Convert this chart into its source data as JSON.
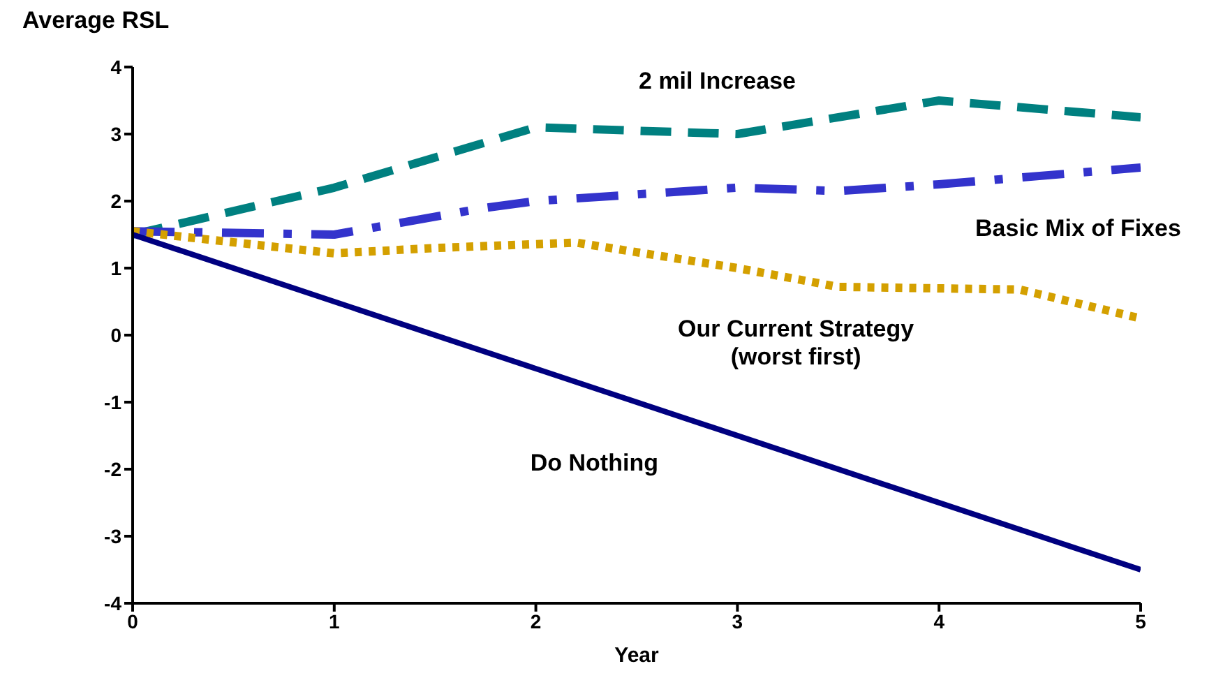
{
  "chart_data": {
    "type": "line",
    "ylabel": "Average RSL",
    "xlabel": "Year",
    "xlim": [
      0,
      5
    ],
    "xticks": [
      0,
      1,
      2,
      3,
      4,
      5
    ],
    "ylim": [
      -4,
      4
    ],
    "yticks": [
      -4,
      -3,
      -2,
      -1,
      0,
      1,
      2,
      3,
      4
    ],
    "grid": false,
    "legend": false,
    "marker": "none",
    "series": [
      {
        "name": "2 mil Increase",
        "color": "#008080",
        "line_style": "dashed",
        "x": [
          0,
          1,
          2,
          3,
          4,
          5
        ],
        "values": [
          1.5,
          2.2,
          3.1,
          3.0,
          3.5,
          3.25
        ]
      },
      {
        "name": "Basic Mix of Fixes",
        "color": "#3333cc",
        "line_style": "dashdot",
        "x": [
          0,
          1,
          1.75,
          2,
          3,
          3.5,
          4,
          5
        ],
        "values": [
          1.55,
          1.5,
          1.9,
          2.0,
          2.2,
          2.15,
          2.25,
          2.5
        ]
      },
      {
        "name": "Our Current Strategy\n(worst first)",
        "color": "#d4a000",
        "line_style": "dotted",
        "x": [
          0,
          1,
          1.5,
          2.2,
          3,
          3.5,
          4.4,
          5
        ],
        "values": [
          1.55,
          1.22,
          1.3,
          1.38,
          1.0,
          0.72,
          0.68,
          0.25
        ]
      },
      {
        "name": "Do Nothing",
        "color": "#000080",
        "line_style": "solid",
        "x": [
          0,
          5
        ],
        "values": [
          1.5,
          -3.5
        ]
      }
    ]
  }
}
